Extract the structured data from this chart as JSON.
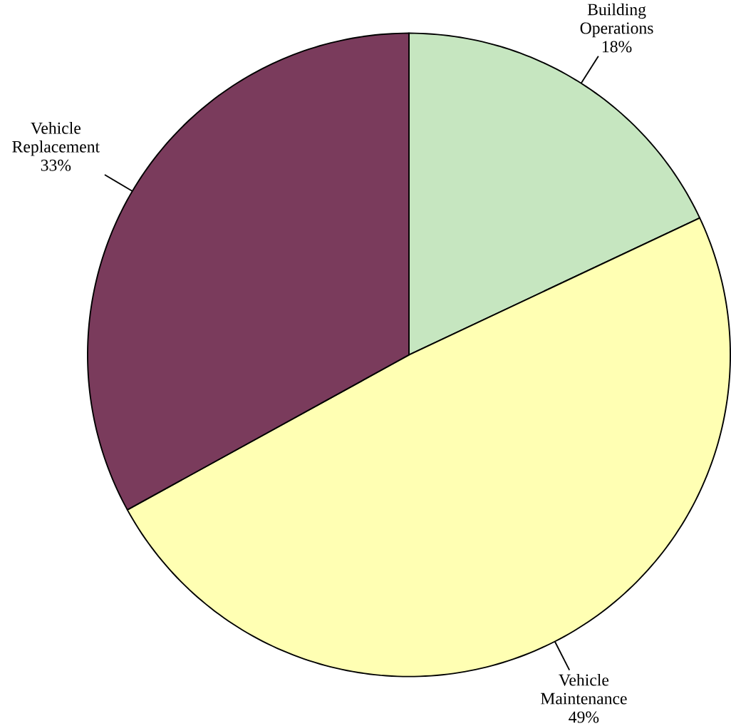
{
  "chart_data": {
    "type": "pie",
    "categories": [
      "Building Operations",
      "Vehicle Maintenance",
      "Vehicle Replacement"
    ],
    "values": [
      18,
      49,
      33
    ],
    "colors": [
      "#c6e6c0",
      "#ffffb3",
      "#7a3b5c"
    ],
    "value_labels": [
      "18%",
      "49%",
      "33%"
    ]
  }
}
